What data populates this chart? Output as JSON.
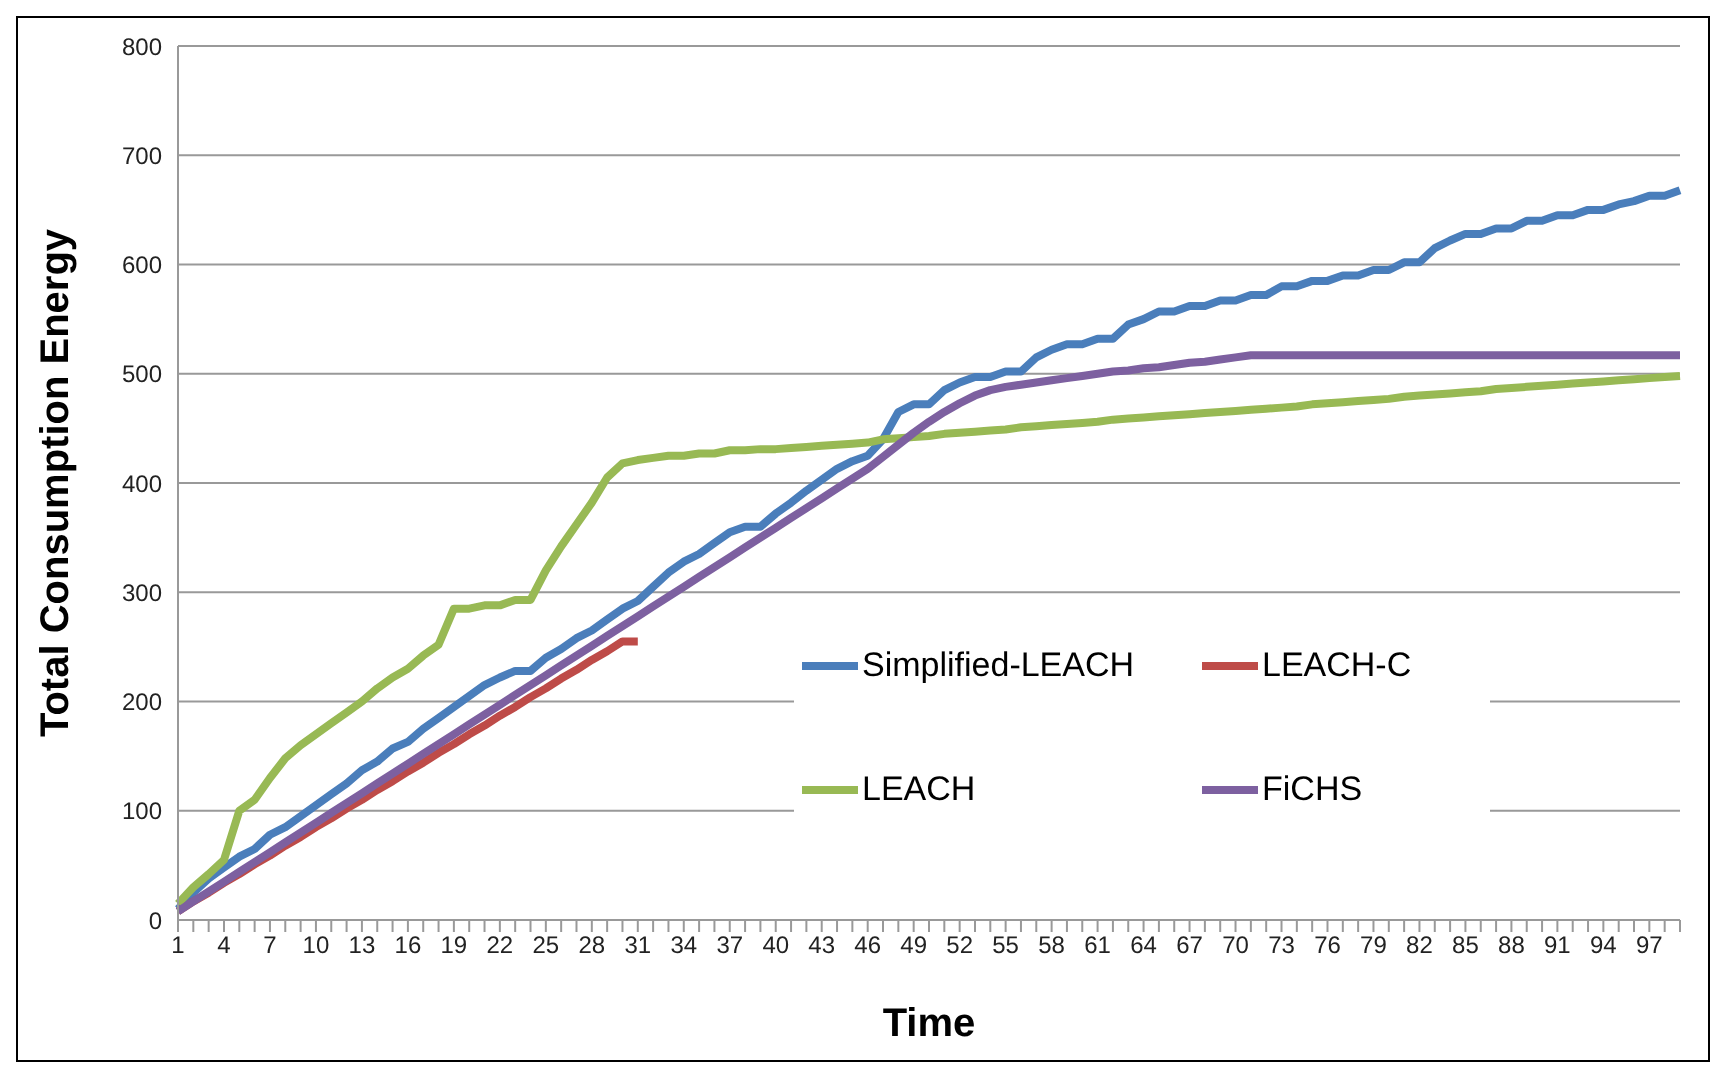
{
  "chart_data": {
    "type": "line",
    "xlabel": "Time",
    "ylabel": "Total Consumption Energy",
    "categories": [
      "1",
      null,
      null,
      "4",
      null,
      null,
      "7",
      null,
      null,
      "10",
      null,
      null,
      "13",
      null,
      null,
      "16",
      null,
      null,
      "19",
      null,
      null,
      "22",
      null,
      null,
      "25",
      null,
      null,
      "28",
      null,
      null,
      "31",
      null,
      null,
      "34",
      null,
      null,
      "37",
      null,
      null,
      "40",
      null,
      null,
      "43",
      null,
      null,
      "46",
      null,
      null,
      "49",
      null,
      null,
      "52",
      null,
      null,
      "55",
      null,
      null,
      "58",
      null,
      null,
      "61",
      null,
      null,
      "64",
      null,
      null,
      "67",
      null,
      null,
      "70",
      null,
      null,
      "73",
      null,
      null,
      "76",
      null,
      null,
      "79",
      null,
      null,
      "82",
      null,
      null,
      "85",
      null,
      null,
      "88",
      null,
      null,
      "91",
      null,
      null,
      "94",
      null,
      null,
      "97",
      null,
      null
    ],
    "series": [
      {
        "name": "Simplified-LEACH",
        "color": "#4a7ebb",
        "values": [
          10,
          25,
          38,
          48,
          58,
          65,
          78,
          85,
          95,
          105,
          115,
          125,
          137,
          145,
          157,
          163,
          175,
          185,
          195,
          205,
          215,
          222,
          228,
          228,
          240,
          248,
          258,
          265,
          275,
          285,
          292,
          305,
          318,
          328,
          335,
          345,
          355,
          360,
          360,
          372,
          382,
          393,
          403,
          413,
          420,
          425,
          440,
          465,
          472,
          472,
          485,
          492,
          497,
          497,
          502,
          502,
          515,
          522,
          527,
          527,
          532,
          532,
          545,
          550,
          557,
          557,
          562,
          562,
          567,
          567,
          572,
          572,
          580,
          580,
          585,
          585,
          590,
          590,
          595,
          595,
          602,
          602,
          615,
          622,
          628,
          628,
          633,
          633,
          640,
          640,
          645,
          645,
          650,
          650,
          655,
          658,
          663,
          663,
          668
        ]
      },
      {
        "name": "LEACH-C",
        "color": "#be4b48",
        "values": [
          8,
          17,
          25,
          34,
          42,
          51,
          59,
          68,
          76,
          85,
          93,
          102,
          110,
          119,
          127,
          136,
          144,
          153,
          161,
          170,
          178,
          187,
          195,
          204,
          212,
          221,
          229,
          238,
          246,
          255,
          255,
          null,
          null,
          null,
          null,
          null,
          null,
          null,
          null,
          null,
          null,
          null,
          null,
          null,
          null,
          null,
          null,
          null,
          null,
          null,
          null,
          null,
          null,
          null,
          null,
          null,
          null,
          null,
          null,
          null,
          null,
          null,
          null,
          null,
          null,
          null,
          null,
          null,
          null,
          null,
          null,
          null,
          null,
          null,
          null,
          null,
          null,
          null,
          null,
          null,
          null,
          null,
          null,
          null,
          null,
          null,
          null,
          null,
          null,
          null,
          null,
          null,
          null,
          null,
          null,
          null,
          null,
          null,
          null
        ]
      },
      {
        "name": "LEACH",
        "color": "#98b954",
        "values": [
          15,
          30,
          42,
          55,
          100,
          110,
          130,
          148,
          160,
          170,
          180,
          190,
          200,
          212,
          222,
          230,
          242,
          252,
          285,
          285,
          288,
          288,
          293,
          293,
          320,
          342,
          362,
          382,
          405,
          418,
          421,
          423,
          425,
          425,
          427,
          427,
          430,
          430,
          431,
          431,
          432,
          433,
          434,
          435,
          436,
          437,
          440,
          441,
          442,
          443,
          445,
          446,
          447,
          448,
          449,
          451,
          452,
          453,
          454,
          455,
          456,
          458,
          459,
          460,
          461,
          462,
          463,
          464,
          465,
          466,
          467,
          468,
          469,
          470,
          472,
          473,
          474,
          475,
          476,
          477,
          479,
          480,
          481,
          482,
          483,
          484,
          486,
          487,
          488,
          489,
          490,
          491,
          492,
          493,
          494,
          495,
          496,
          497,
          498
        ]
      },
      {
        "name": "FiCHS",
        "color": "#7d60a0",
        "values": [
          8,
          17,
          26,
          35,
          44,
          53,
          62,
          71,
          80,
          89,
          98,
          107,
          116,
          125,
          134,
          143,
          152,
          161,
          170,
          179,
          188,
          197,
          206,
          215,
          224,
          233,
          242,
          251,
          260,
          269,
          278,
          287,
          296,
          305,
          314,
          323,
          332,
          341,
          350,
          359,
          368,
          377,
          386,
          395,
          404,
          413,
          424,
          435,
          446,
          456,
          465,
          473,
          480,
          485,
          488,
          490,
          492,
          494,
          496,
          498,
          500,
          502,
          503,
          505,
          506,
          508,
          510,
          511,
          513,
          515,
          517,
          517,
          517,
          517,
          517,
          517,
          517,
          517,
          517,
          517,
          517,
          517,
          517,
          517,
          517,
          517,
          517,
          517,
          517,
          517,
          517,
          517,
          517,
          517,
          517,
          517,
          517,
          517,
          517
        ]
      }
    ],
    "ylim": [
      0,
      800
    ],
    "yticks": [
      0,
      100,
      200,
      300,
      400,
      500,
      600,
      700,
      800
    ],
    "grid": "y",
    "legend": "bottom right"
  }
}
